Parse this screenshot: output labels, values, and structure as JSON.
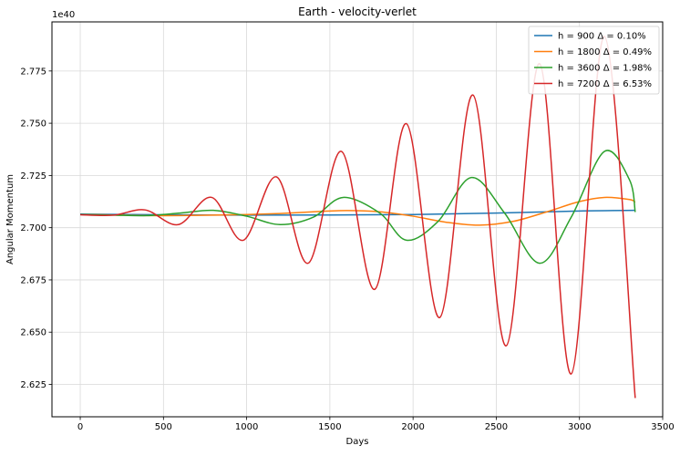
{
  "chart_data": {
    "type": "line",
    "title": "Earth - velocity-verlet",
    "xlabel": "Days",
    "ylabel": "Angular Momentum",
    "offset_text": "1e40",
    "xlim": [
      -170,
      3500
    ],
    "ylim": [
      2.6095,
      2.7985
    ],
    "xticks": [
      0,
      500,
      1000,
      1500,
      2000,
      2500,
      3000,
      3500
    ],
    "yticks": [
      2.625,
      2.65,
      2.675,
      2.7,
      2.725,
      2.75,
      2.775
    ],
    "ytick_labels": [
      "2.625",
      "2.650",
      "2.675",
      "2.700",
      "2.725",
      "2.750",
      "2.775"
    ],
    "grid": true,
    "legend_position": "top-right",
    "series": [
      {
        "name": "h = 900 Δ =  0.10%",
        "color": "#1f77b4",
        "x": [
          0,
          500,
          1000,
          1500,
          2000,
          2500,
          3000,
          3335
        ],
        "y": [
          2.7065,
          2.7062,
          2.706,
          2.7061,
          2.7063,
          2.707,
          2.708,
          2.7083
        ]
      },
      {
        "name": "h = 1800 Δ =  0.49%",
        "color": "#ff7f0e",
        "x": [
          0,
          200,
          400,
          600,
          800,
          1000,
          1200,
          1400,
          1600,
          1800,
          2000,
          2200,
          2400,
          2600,
          2800,
          3000,
          3150,
          3300,
          3335
        ],
        "y": [
          2.7063,
          2.7061,
          2.7058,
          2.7058,
          2.706,
          2.7063,
          2.7068,
          2.7076,
          2.7082,
          2.7076,
          2.7055,
          2.7026,
          2.7012,
          2.703,
          2.7075,
          2.7125,
          2.7145,
          2.7135,
          2.7122
        ]
      },
      {
        "name": "h = 3600 Δ =  1.98%",
        "color": "#2ca02c",
        "x": [
          0,
          200,
          400,
          600,
          800,
          1000,
          1200,
          1400,
          1580,
          1800,
          1960,
          2150,
          2350,
          2550,
          2760,
          2950,
          3150,
          3300,
          3335
        ],
        "y": [
          2.7063,
          2.706,
          2.7058,
          2.707,
          2.7083,
          2.7055,
          2.7015,
          2.705,
          2.7145,
          2.707,
          2.694,
          2.703,
          2.724,
          2.707,
          2.683,
          2.705,
          2.7365,
          2.723,
          2.7075
        ]
      },
      {
        "name": "h = 7200 Δ =  6.53%",
        "color": "#d62728",
        "x": [
          0,
          200,
          390,
          590,
          790,
          980,
          1180,
          1370,
          1570,
          1770,
          1960,
          2160,
          2360,
          2560,
          2760,
          2950,
          3150,
          3335
        ],
        "y": [
          2.7062,
          2.706,
          2.7085,
          2.7015,
          2.7145,
          2.694,
          2.7243,
          2.683,
          2.7365,
          2.6705,
          2.7498,
          2.657,
          2.7635,
          2.6435,
          2.7785,
          2.63,
          2.7915,
          2.6185
        ]
      }
    ]
  }
}
